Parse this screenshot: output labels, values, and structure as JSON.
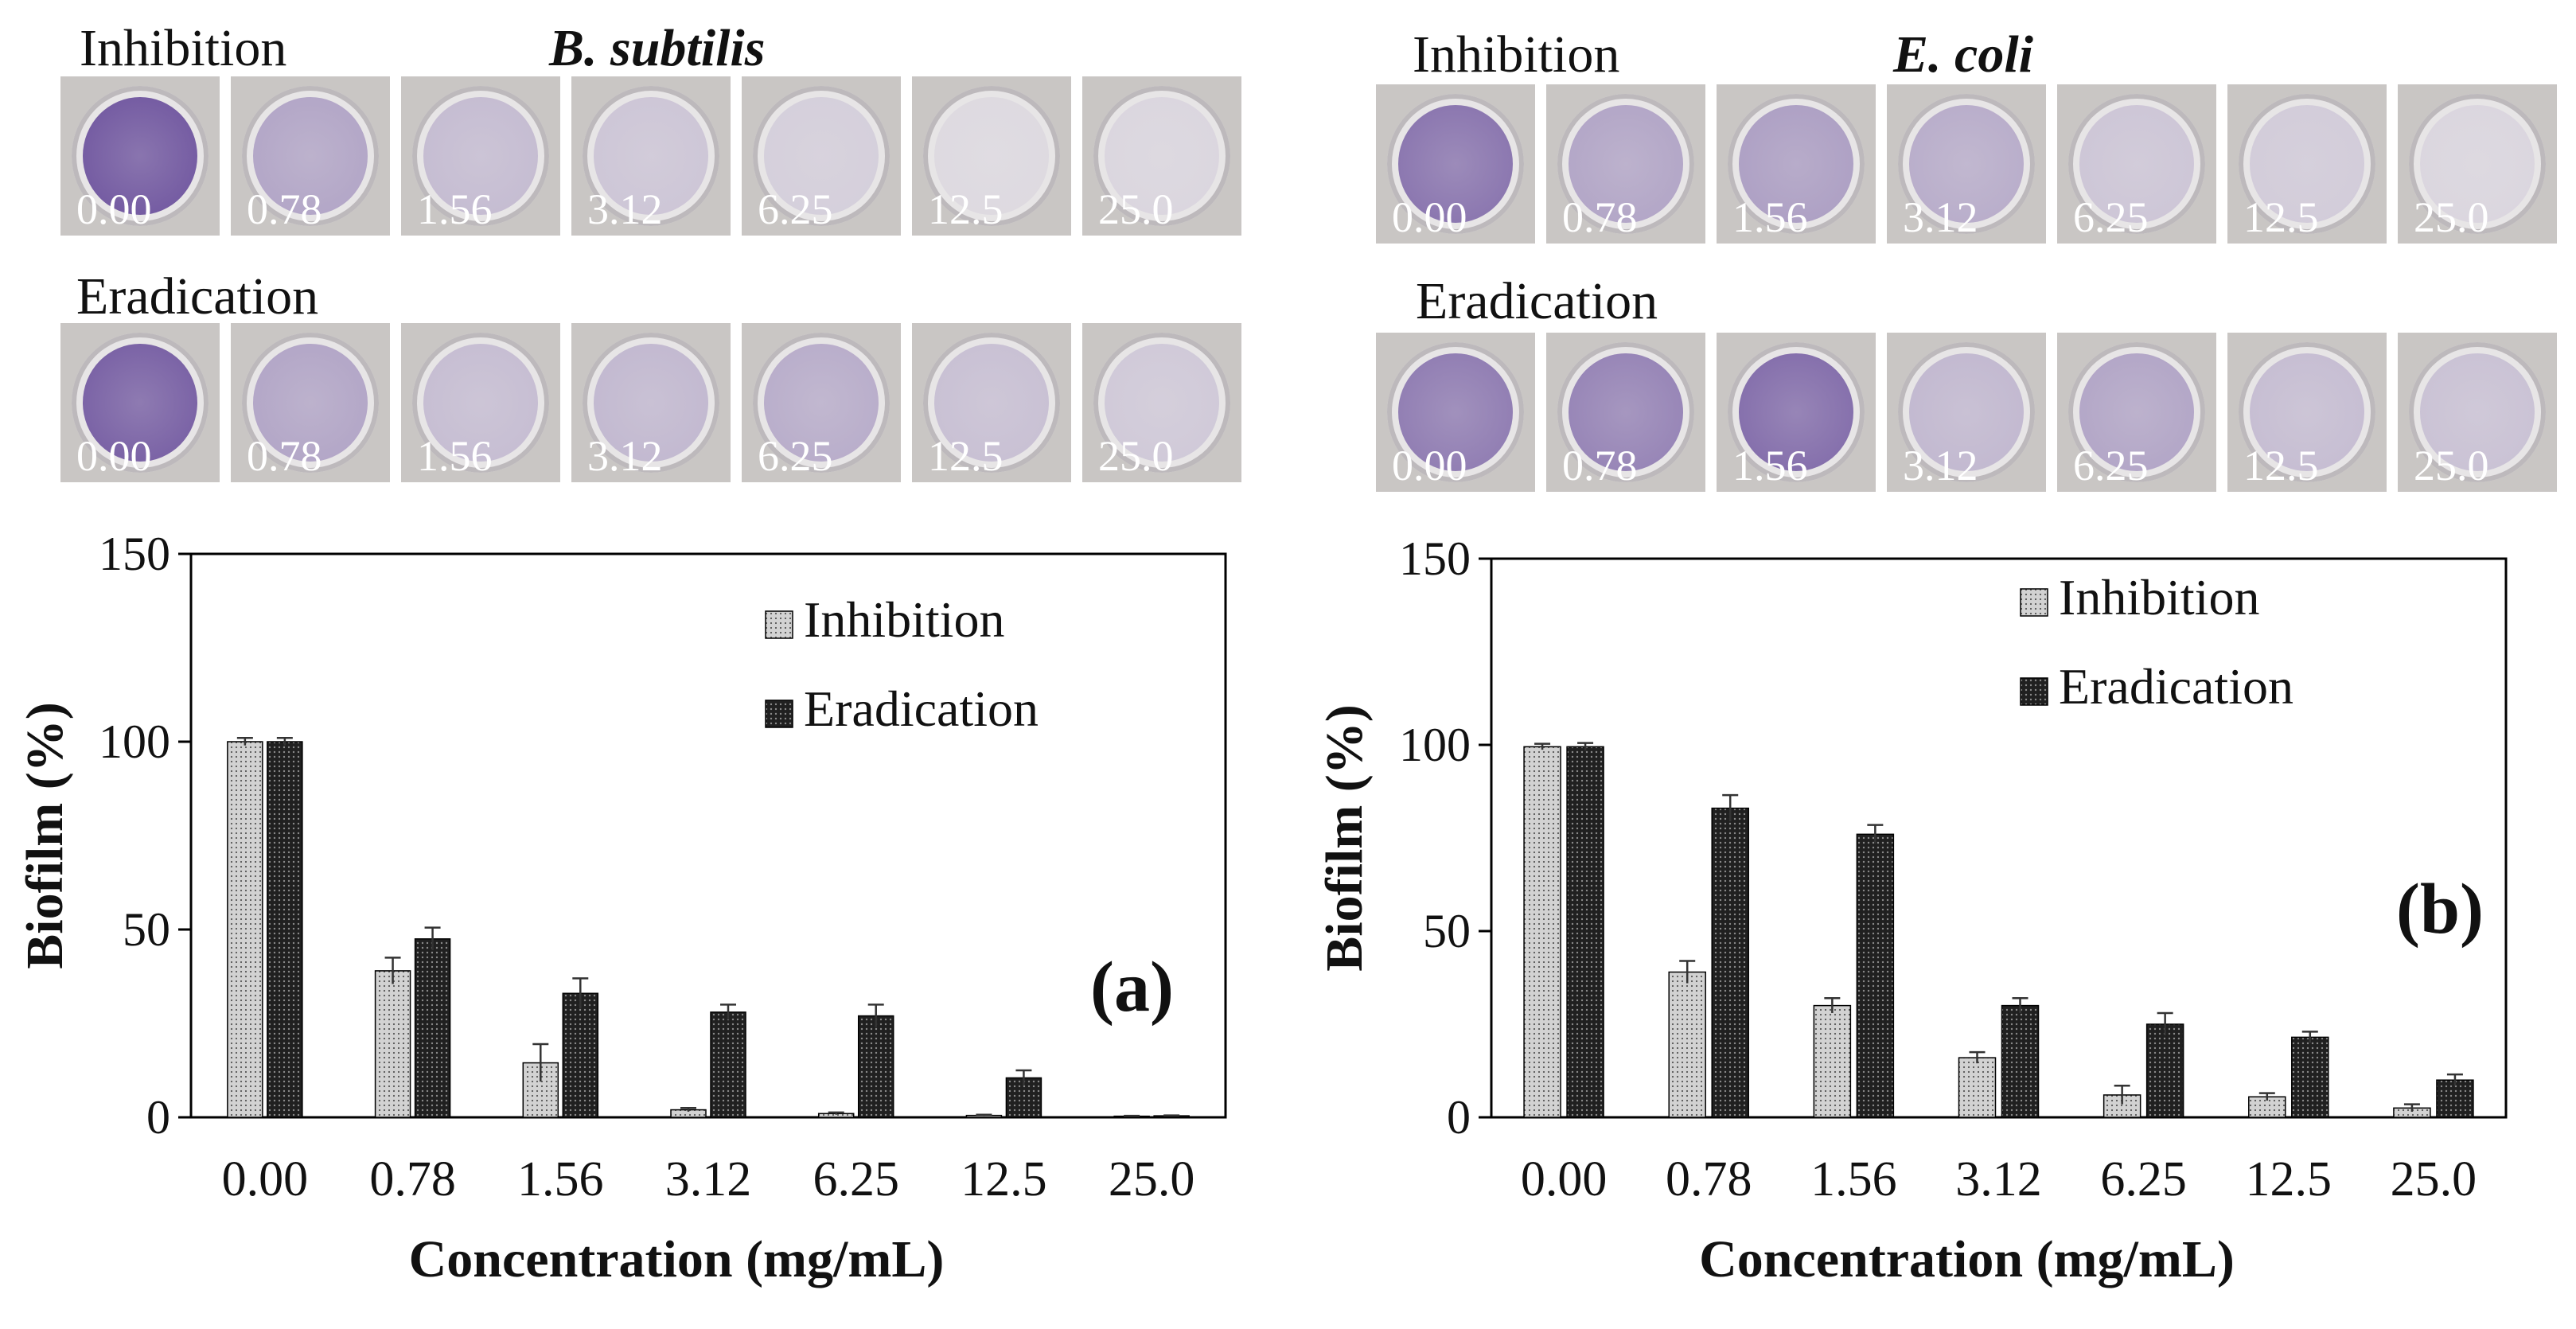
{
  "panels": [
    {
      "id": "a",
      "organism": "B. subtilis",
      "rows": [
        {
          "label": "Inhibition",
          "wells": [
            "0.00",
            "0.78",
            "1.56",
            "3.12",
            "6.25",
            "12.5",
            "25.0"
          ],
          "stain": [
            1.0,
            0.45,
            0.3,
            0.22,
            0.16,
            0.08,
            0.1
          ]
        },
        {
          "label": "Eradication",
          "wells": [
            "0.00",
            "0.78",
            "1.56",
            "3.12",
            "6.25",
            "12.5",
            "25.0"
          ],
          "stain": [
            0.95,
            0.45,
            0.28,
            0.32,
            0.4,
            0.26,
            0.2
          ]
        }
      ]
    },
    {
      "id": "b",
      "organism": "E. coli",
      "rows": [
        {
          "label": "Inhibition",
          "wells": [
            "0.00",
            "0.78",
            "1.56",
            "3.12",
            "6.25",
            "12.5",
            "25.0"
          ],
          "stain": [
            0.8,
            0.45,
            0.5,
            0.4,
            0.22,
            0.18,
            0.1
          ]
        },
        {
          "label": "Eradication",
          "wells": [
            "0.00",
            "0.78",
            "1.56",
            "3.12",
            "6.25",
            "12.5",
            "25.0"
          ],
          "stain": [
            0.75,
            0.7,
            0.85,
            0.32,
            0.45,
            0.28,
            0.25
          ]
        }
      ]
    }
  ],
  "colors": {
    "inhibition_fill": "#d2d2d2",
    "eradication_fill": "#202020",
    "stain": "#6a4f9c",
    "axis": "#000000"
  },
  "chart_data": [
    {
      "type": "bar",
      "panel_label": "(a)",
      "categories": [
        "0.00",
        "0.78",
        "1.56",
        "3.12",
        "6.25",
        "12.5",
        "25.0"
      ],
      "series": [
        {
          "name": "Inhibition",
          "values": [
            100,
            39,
            14.5,
            2,
            1,
            0.5,
            0.3
          ],
          "errors": [
            1,
            3.5,
            5,
            0.5,
            0.3,
            0.2,
            0.1
          ]
        },
        {
          "name": "Eradication",
          "values": [
            100,
            47.5,
            33,
            28,
            27,
            10.5,
            0.4
          ],
          "errors": [
            1,
            3,
            4,
            2,
            3,
            2,
            0.1
          ]
        }
      ],
      "xlabel": "Concentration (mg/mL)",
      "ylabel": "Biofilm (%)",
      "ylim": [
        0,
        150
      ],
      "yticks": [
        0,
        50,
        100,
        150
      ],
      "legend": "upper-right",
      "grid": false
    },
    {
      "type": "bar",
      "panel_label": "(b)",
      "categories": [
        "0.00",
        "0.78",
        "1.56",
        "3.12",
        "6.25",
        "12.5",
        "25.0"
      ],
      "series": [
        {
          "name": "Inhibition",
          "values": [
            99.5,
            39,
            30,
            16,
            6,
            5.5,
            2.5
          ],
          "errors": [
            0.8,
            3,
            2,
            1.5,
            2.5,
            1,
            1
          ]
        },
        {
          "name": "Eradication",
          "values": [
            99.5,
            83,
            76,
            30,
            25,
            21.5,
            10
          ],
          "errors": [
            1,
            3.5,
            2.5,
            2,
            3,
            1.5,
            1.5
          ]
        }
      ],
      "xlabel": "Concentration (mg/mL)",
      "ylabel": "Biofilm (%)",
      "ylim": [
        0,
        150
      ],
      "yticks": [
        0,
        50,
        100,
        150
      ],
      "legend": "upper-right",
      "grid": false
    }
  ]
}
